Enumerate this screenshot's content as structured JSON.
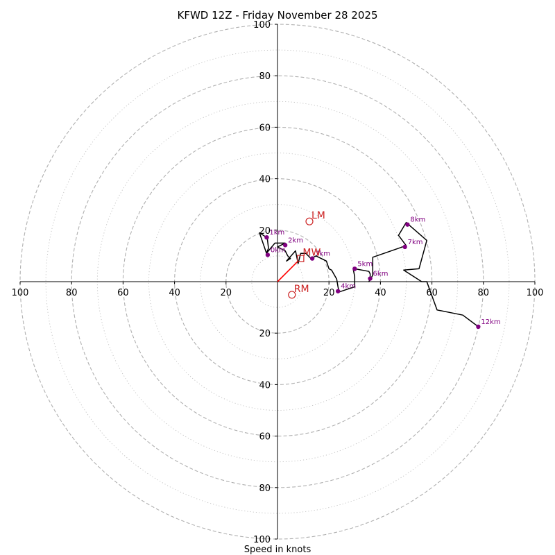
{
  "chart_data": {
    "type": "hodograph",
    "title": "KFWD 12Z - Friday November 28 2025",
    "xlabel": "Speed in knots",
    "range": [
      -100,
      100
    ],
    "dashed_rings": [
      20,
      40,
      60,
      80,
      100
    ],
    "dotted_rings": [
      10,
      30,
      50,
      70,
      90
    ],
    "x_ticks": [
      {
        "value": -100,
        "label": "100"
      },
      {
        "value": -80,
        "label": "80"
      },
      {
        "value": -60,
        "label": "60"
      },
      {
        "value": -40,
        "label": "40"
      },
      {
        "value": -20,
        "label": "20"
      },
      {
        "value": 20,
        "label": "20"
      },
      {
        "value": 40,
        "label": "40"
      },
      {
        "value": 60,
        "label": "60"
      },
      {
        "value": 80,
        "label": "80"
      },
      {
        "value": 100,
        "label": "100"
      }
    ],
    "y_ticks": [
      {
        "value": 100,
        "label": "100"
      },
      {
        "value": 80,
        "label": "80"
      },
      {
        "value": 60,
        "label": "60"
      },
      {
        "value": 40,
        "label": "40"
      },
      {
        "value": 20,
        "label": "20"
      },
      {
        "value": -20,
        "label": "20"
      },
      {
        "value": -40,
        "label": "40"
      },
      {
        "value": -60,
        "label": "60"
      },
      {
        "value": -80,
        "label": "80"
      },
      {
        "value": -100,
        "label": "100"
      }
    ],
    "colors": {
      "trace": "#000000",
      "height_marker": "#800080",
      "storm_motion": "#cc2222",
      "mean_wind_vector": "#ff0000",
      "ring": "#b0b0b0",
      "axis": "#000000"
    },
    "hodograph_trace": [
      [
        -4.2,
        10.8
      ],
      [
        -7,
        19
      ],
      [
        -4,
        17
      ],
      [
        -3.5,
        13
      ],
      [
        -4.3,
        11
      ],
      [
        -1,
        15
      ],
      [
        3,
        15
      ],
      [
        0,
        13.5
      ],
      [
        3,
        12
      ],
      [
        4,
        10
      ],
      [
        5,
        9
      ],
      [
        3.5,
        8
      ],
      [
        7,
        12
      ],
      [
        8,
        7
      ],
      [
        9,
        11
      ],
      [
        11,
        11
      ],
      [
        13,
        9
      ],
      [
        15,
        10
      ],
      [
        19,
        8
      ],
      [
        20,
        5
      ],
      [
        21,
        4.5
      ],
      [
        23,
        1
      ],
      [
        23.5,
        -2
      ],
      [
        24,
        -4
      ],
      [
        27,
        -3
      ],
      [
        30,
        -2
      ],
      [
        30,
        2
      ],
      [
        29.5,
        4.5
      ],
      [
        30,
        5
      ],
      [
        35.5,
        4
      ],
      [
        36,
        3
      ],
      [
        36,
        1
      ],
      [
        35.5,
        0
      ],
      [
        37,
        2.5
      ],
      [
        37,
        9.5
      ],
      [
        50,
        14
      ],
      [
        47,
        18
      ],
      [
        50,
        23
      ],
      [
        58,
        16
      ],
      [
        55,
        5
      ],
      [
        49,
        4.5
      ],
      [
        56,
        0
      ],
      [
        58,
        0
      ],
      [
        62,
        -11
      ],
      [
        72,
        -13
      ],
      [
        78,
        -17.5
      ]
    ],
    "height_markers": [
      {
        "label": "1km",
        "u": -4.2,
        "v": 17.2
      },
      {
        "label": "2km",
        "u": 3,
        "v": 14.2
      },
      {
        "label": "3km",
        "u": 13.5,
        "v": 9
      },
      {
        "label": "4km",
        "u": 23.5,
        "v": -3.7
      },
      {
        "label": "5km",
        "u": 30,
        "v": 5
      },
      {
        "label": "6km",
        "u": 36,
        "v": 1.2
      },
      {
        "label": "7km",
        "u": 49.5,
        "v": 13.5
      },
      {
        "label": "8km",
        "u": 50.5,
        "v": 22.2
      },
      {
        "label": "12km",
        "u": 78,
        "v": -17.5
      },
      {
        "label": "0km",
        "u": -3.8,
        "v": 10.4
      }
    ],
    "storm_motions": [
      {
        "label": "LM",
        "u": 12.4,
        "v": 23.4,
        "marker": "circle"
      },
      {
        "label": "RM",
        "u": 5.6,
        "v": -5.1,
        "marker": "circle"
      },
      {
        "label": "MW",
        "u": 9,
        "v": 9,
        "marker": "square"
      }
    ],
    "mean_wind_vector": {
      "u": 8,
      "v": 8
    }
  }
}
